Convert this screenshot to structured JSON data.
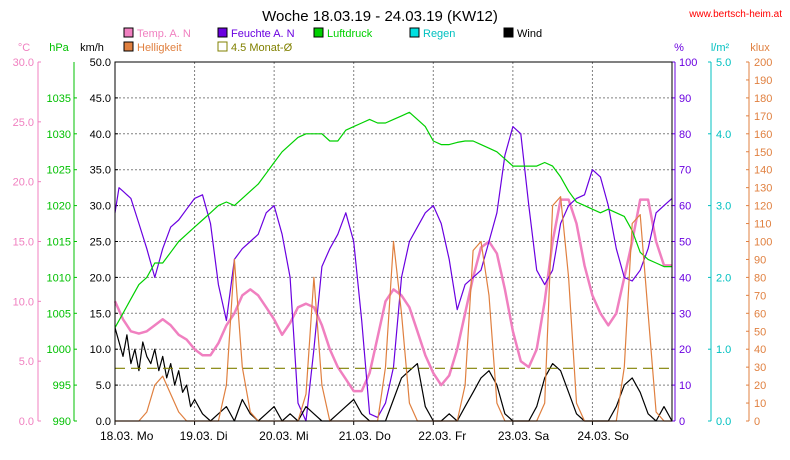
{
  "header": {
    "title": "Woche 18.03.19 - 24.03.19 (KW12)",
    "website": "www.bertsch-heim.at"
  },
  "legend": [
    {
      "label": "Temp. A. N",
      "color": "#f080c0"
    },
    {
      "label": "Feuchte A. N",
      "color": "#6a00e0"
    },
    {
      "label": "Luftdruck",
      "color": "#00d000"
    },
    {
      "label": "Regen",
      "color": "#00e0e0"
    },
    {
      "label": "Wind",
      "color": "#000000"
    },
    {
      "label": "Helligkeit",
      "color": "#e08040"
    },
    {
      "label": "4.5 Monat-Ø",
      "color": "#808000"
    }
  ],
  "axes": {
    "temp": {
      "unit": "°C",
      "ticks": [
        "0.0",
        "5.0",
        "10.0",
        "15.0",
        "20.0",
        "25.0",
        "30.0"
      ],
      "color": "#f080c0"
    },
    "pressure": {
      "unit": "hPa",
      "ticks": [
        "990",
        "995",
        "1000",
        "1005",
        "1010",
        "1015",
        "1020",
        "1025",
        "1030",
        "1035"
      ],
      "color": "#00c000"
    },
    "wind": {
      "unit": "km/h",
      "ticks": [
        "0.0",
        "5.0",
        "10.0",
        "15.0",
        "20.0",
        "25.0",
        "30.0",
        "35.0",
        "40.0",
        "45.0",
        "50.0"
      ],
      "color": "#000000"
    },
    "humidity": {
      "unit": "%",
      "ticks": [
        "0",
        "10",
        "20",
        "30",
        "40",
        "50",
        "60",
        "70",
        "80",
        "90",
        "100"
      ],
      "color": "#6a00e0"
    },
    "rain": {
      "unit": "l/m²",
      "ticks": [
        "0.0",
        "1.0",
        "2.0",
        "3.0",
        "4.0",
        "5.0"
      ],
      "color": "#00c0c0"
    },
    "lux": {
      "unit": "klux",
      "ticks": [
        "0",
        "10",
        "20",
        "30",
        "40",
        "50",
        "60",
        "70",
        "80",
        "90",
        "100",
        "110",
        "120",
        "130",
        "140",
        "150",
        "160",
        "170",
        "180",
        "190",
        "200"
      ],
      "color": "#e08040"
    },
    "x_ticks": [
      "18.03.  Mo",
      "19.03.  Di",
      "20.03.  Mi",
      "21.03.  Do",
      "22.03.  Fr",
      "23.03.  Sa",
      "24.03.  So"
    ]
  },
  "chart_data": {
    "type": "line",
    "title": "Woche 18.03.19 - 24.03.19 (KW12)",
    "x_unit": "days since 18.03.19 00:00",
    "xlim": [
      0,
      7
    ],
    "series": [
      {
        "name": "Temp. A. N",
        "axis": "temp",
        "ylim": [
          0,
          30
        ],
        "color": "#f080c0",
        "x": [
          0,
          0.1,
          0.2,
          0.3,
          0.4,
          0.5,
          0.6,
          0.7,
          0.8,
          0.9,
          1.0,
          1.1,
          1.2,
          1.3,
          1.4,
          1.5,
          1.6,
          1.7,
          1.8,
          1.9,
          2.0,
          2.1,
          2.2,
          2.3,
          2.4,
          2.5,
          2.6,
          2.7,
          2.8,
          2.9,
          3.0,
          3.1,
          3.2,
          3.3,
          3.4,
          3.5,
          3.6,
          3.7,
          3.8,
          3.9,
          4.0,
          4.1,
          4.2,
          4.3,
          4.4,
          4.5,
          4.6,
          4.7,
          4.8,
          4.9,
          5.0,
          5.1,
          5.2,
          5.3,
          5.4,
          5.5,
          5.6,
          5.7,
          5.8,
          5.9,
          6.0,
          6.1,
          6.2,
          6.3,
          6.4,
          6.5,
          6.6,
          6.7,
          6.8,
          6.9,
          7.0
        ],
        "y": [
          10.0,
          8.5,
          7.5,
          7.3,
          7.5,
          8.0,
          8.5,
          8.0,
          7.2,
          6.8,
          6.0,
          5.5,
          5.5,
          6.5,
          8.0,
          9.0,
          10.5,
          11.0,
          10.5,
          9.5,
          8.5,
          7.2,
          8.2,
          9.5,
          9.8,
          9.5,
          8.0,
          6.0,
          4.5,
          3.5,
          2.5,
          2.5,
          4.0,
          7.0,
          10.0,
          11.0,
          10.5,
          9.5,
          7.5,
          5.5,
          4.0,
          3.0,
          3.8,
          6.0,
          9.0,
          12.0,
          14.5,
          15.0,
          14.0,
          11.0,
          7.5,
          5.0,
          4.5,
          6.0,
          10.0,
          15.0,
          18.5,
          18.5,
          16.5,
          13.0,
          10.5,
          9.0,
          8.0,
          9.0,
          12.0,
          15.0,
          18.5,
          18.5,
          15.0,
          13.0,
          13.0
        ]
      },
      {
        "name": "Feuchte A. N",
        "axis": "humidity",
        "ylim": [
          0,
          100
        ],
        "color": "#6a00e0",
        "x": [
          0,
          0.05,
          0.1,
          0.2,
          0.3,
          0.4,
          0.5,
          0.6,
          0.7,
          0.8,
          0.9,
          1.0,
          1.1,
          1.2,
          1.3,
          1.4,
          1.5,
          1.6,
          1.7,
          1.8,
          1.9,
          2.0,
          2.1,
          2.2,
          2.3,
          2.4,
          2.5,
          2.6,
          2.7,
          2.8,
          2.9,
          3.0,
          3.1,
          3.2,
          3.3,
          3.4,
          3.5,
          3.6,
          3.7,
          3.8,
          3.9,
          4.0,
          4.1,
          4.2,
          4.3,
          4.4,
          4.5,
          4.6,
          4.7,
          4.8,
          4.9,
          5.0,
          5.1,
          5.2,
          5.3,
          5.4,
          5.5,
          5.6,
          5.7,
          5.8,
          5.9,
          6.0,
          6.1,
          6.2,
          6.3,
          6.4,
          6.5,
          6.6,
          6.7,
          6.8,
          6.9,
          7.0
        ],
        "y": [
          58,
          65,
          64,
          62,
          55,
          48,
          40,
          48,
          54,
          56,
          59,
          62,
          63,
          55,
          38,
          28,
          45,
          48,
          50,
          52,
          58,
          60,
          52,
          40,
          5,
          0,
          20,
          43,
          48,
          52,
          58,
          50,
          28,
          2,
          1,
          5,
          15,
          40,
          50,
          54,
          58,
          60,
          55,
          45,
          31,
          38,
          40,
          42,
          50,
          58,
          74,
          82,
          80,
          60,
          42,
          38,
          42,
          55,
          60,
          62,
          63,
          70,
          68,
          60,
          48,
          40,
          39,
          42,
          48,
          58,
          60,
          62
        ]
      },
      {
        "name": "Luftdruck",
        "axis": "pressure",
        "ylim": [
          990,
          1040
        ],
        "color": "#00d000",
        "x": [
          0,
          0.1,
          0.2,
          0.3,
          0.4,
          0.5,
          0.6,
          0.7,
          0.8,
          0.9,
          1.0,
          1.1,
          1.2,
          1.3,
          1.4,
          1.5,
          1.6,
          1.7,
          1.8,
          1.9,
          2.0,
          2.1,
          2.2,
          2.3,
          2.4,
          2.5,
          2.6,
          2.7,
          2.8,
          2.9,
          3.0,
          3.1,
          3.2,
          3.3,
          3.4,
          3.5,
          3.6,
          3.7,
          3.8,
          3.9,
          4.0,
          4.1,
          4.2,
          4.3,
          4.4,
          4.5,
          4.6,
          4.7,
          4.8,
          4.9,
          5.0,
          5.1,
          5.2,
          5.3,
          5.4,
          5.5,
          5.6,
          5.7,
          5.8,
          5.9,
          6.0,
          6.1,
          6.2,
          6.3,
          6.4,
          6.5,
          6.6,
          6.7,
          6.8,
          6.9,
          7.0
        ],
        "y": [
          1003,
          1005,
          1007,
          1009,
          1010,
          1012,
          1012,
          1013.5,
          1015,
          1016,
          1017,
          1018,
          1019,
          1020,
          1020.5,
          1020,
          1021,
          1022,
          1023,
          1024.5,
          1026,
          1027.5,
          1028.5,
          1029.5,
          1030,
          1030,
          1030,
          1029,
          1029,
          1030.5,
          1031,
          1031.5,
          1032,
          1031.5,
          1031.5,
          1032,
          1032.5,
          1033,
          1032,
          1031,
          1029,
          1028.5,
          1028.5,
          1028.8,
          1029,
          1029,
          1028.5,
          1028,
          1027.5,
          1026.5,
          1025.5,
          1025.5,
          1025.5,
          1025.5,
          1026,
          1025.5,
          1024,
          1022,
          1020.5,
          1020,
          1019.5,
          1019,
          1019.5,
          1019,
          1018.5,
          1016.5,
          1013.5,
          1012.5,
          1012,
          1011.5,
          1011.5
        ]
      },
      {
        "name": "Wind",
        "axis": "wind",
        "ylim": [
          0,
          50
        ],
        "color": "#000000",
        "x": [
          0,
          0.05,
          0.1,
          0.15,
          0.2,
          0.25,
          0.3,
          0.35,
          0.4,
          0.45,
          0.5,
          0.55,
          0.6,
          0.65,
          0.7,
          0.75,
          0.8,
          0.85,
          0.9,
          0.95,
          1.0,
          1.1,
          1.2,
          1.3,
          1.4,
          1.5,
          1.6,
          1.7,
          1.8,
          1.9,
          2.0,
          2.1,
          2.2,
          2.3,
          2.4,
          2.5,
          2.6,
          2.7,
          2.8,
          2.9,
          3.0,
          3.1,
          3.2,
          3.3,
          3.4,
          3.5,
          3.6,
          3.7,
          3.8,
          3.9,
          4.0,
          4.1,
          4.2,
          4.3,
          4.4,
          4.5,
          4.6,
          4.7,
          4.8,
          4.9,
          5.0,
          5.1,
          5.2,
          5.3,
          5.4,
          5.5,
          5.6,
          5.7,
          5.8,
          5.9,
          6.0,
          6.1,
          6.2,
          6.3,
          6.4,
          6.5,
          6.6,
          6.7,
          6.8,
          6.9,
          7.0
        ],
        "y": [
          13,
          11,
          9,
          12,
          8,
          10,
          7,
          11,
          9,
          8,
          10,
          7,
          9,
          6,
          8,
          5,
          7,
          4,
          5,
          2,
          3,
          1,
          0,
          1,
          2,
          0,
          3,
          1,
          0,
          1,
          2,
          0,
          1,
          0,
          2,
          1,
          0,
          0,
          1,
          2,
          3,
          1,
          0,
          0,
          0,
          3,
          6,
          7,
          8,
          2,
          0,
          0,
          1,
          0,
          2,
          4,
          6,
          7,
          5,
          1,
          0,
          0,
          0,
          2,
          6,
          8,
          7,
          4,
          1,
          0,
          0,
          0,
          0,
          2,
          5,
          6,
          4,
          1,
          0,
          2,
          0
        ]
      },
      {
        "name": "Helligkeit",
        "axis": "lux",
        "ylim": [
          0,
          200
        ],
        "color": "#e08040",
        "x": [
          0,
          0.1,
          0.2,
          0.3,
          0.4,
          0.5,
          0.6,
          0.7,
          0.8,
          0.9,
          1.0,
          1.1,
          1.2,
          1.3,
          1.4,
          1.5,
          1.6,
          1.7,
          1.8,
          1.9,
          2.0,
          2.1,
          2.2,
          2.3,
          2.4,
          2.5,
          2.6,
          2.7,
          2.8,
          2.9,
          3.0,
          3.1,
          3.2,
          3.3,
          3.4,
          3.5,
          3.6,
          3.7,
          3.8,
          3.9,
          4.0,
          4.1,
          4.2,
          4.3,
          4.4,
          4.5,
          4.6,
          4.7,
          4.8,
          4.9,
          5.0,
          5.1,
          5.2,
          5.3,
          5.4,
          5.5,
          5.6,
          5.7,
          5.8,
          5.9,
          6.0,
          6.1,
          6.2,
          6.3,
          6.4,
          6.5,
          6.6,
          6.7,
          6.8,
          6.9,
          7.0
        ],
        "y": [
          0,
          0,
          0,
          0,
          5,
          20,
          25,
          15,
          5,
          0,
          0,
          0,
          0,
          0,
          20,
          90,
          30,
          5,
          0,
          0,
          0,
          0,
          0,
          0,
          15,
          80,
          20,
          0,
          0,
          0,
          0,
          0,
          0,
          0,
          30,
          100,
          60,
          10,
          0,
          0,
          0,
          0,
          0,
          0,
          20,
          95,
          100,
          70,
          10,
          0,
          0,
          0,
          0,
          0,
          10,
          120,
          125,
          80,
          10,
          0,
          0,
          0,
          0,
          0,
          30,
          110,
          115,
          60,
          5,
          0,
          0
        ]
      },
      {
        "name": "4.5 Monat-Ø",
        "axis": "temp",
        "ylim": [
          0,
          30
        ],
        "color": "#808000",
        "x": [
          0,
          7
        ],
        "y": [
          4.4,
          4.4
        ]
      }
    ]
  }
}
